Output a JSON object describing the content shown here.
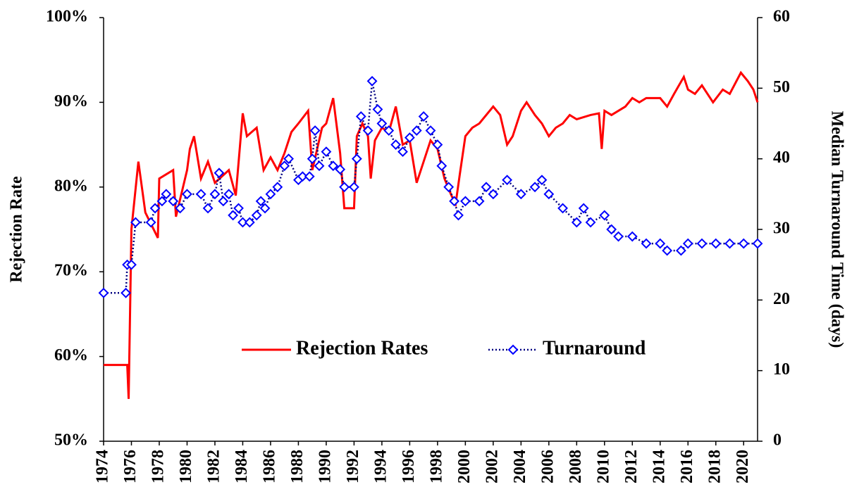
{
  "chart_data": {
    "type": "line",
    "ylabel": "Rejection Rate",
    "y2label": "Median Turnaround Time (days)",
    "xlim": [
      1974,
      2021
    ],
    "xticks": [
      1974,
      1976,
      1978,
      1980,
      1982,
      1984,
      1986,
      1988,
      1990,
      1992,
      1994,
      1996,
      1998,
      2000,
      2002,
      2004,
      2006,
      2008,
      2010,
      2012,
      2014,
      2016,
      2018,
      2020
    ],
    "ylim": [
      50,
      100
    ],
    "yticks": [
      {
        "value": 50,
        "label": "50%"
      },
      {
        "value": 60,
        "label": "60%"
      },
      {
        "value": 70,
        "label": "70%"
      },
      {
        "value": 80,
        "label": "80%"
      },
      {
        "value": 90,
        "label": "90%"
      },
      {
        "value": 100,
        "label": "100%"
      }
    ],
    "y2lim": [
      0,
      60
    ],
    "y2ticks": [
      0,
      10,
      20,
      30,
      40,
      50,
      60
    ],
    "legend": "center",
    "series": [
      {
        "name": "Rejection Rates",
        "color": "#ff0000",
        "style": "solid",
        "x": [
          1974,
          1975.7,
          1975.8,
          1976,
          1976.5,
          1977,
          1977.9,
          1978,
          1979,
          1979.2,
          1980,
          1980.2,
          1980.5,
          1981,
          1981.5,
          1982,
          1983,
          1983.5,
          1984,
          1984.3,
          1985,
          1985.5,
          1986,
          1986.5,
          1987,
          1987.5,
          1988,
          1988.7,
          1989,
          1989.7,
          1990,
          1990.5,
          1991,
          1991.3,
          1992,
          1992.2,
          1992.6,
          1993,
          1993.2,
          1993.5,
          1994,
          1994.5,
          1995,
          1995.5,
          1996,
          1996.5,
          1997,
          1997.5,
          1998,
          1998.5,
          1999,
          1999.3,
          1999.6,
          2000,
          2000.5,
          2001,
          2002,
          2002.5,
          2003,
          2003.4,
          2004,
          2004.4,
          2005,
          2005.5,
          2006,
          2006.5,
          2007,
          2007.5,
          2008,
          2009,
          2009.6,
          2009.8,
          2010,
          2010.5,
          2011,
          2011.5,
          2012,
          2012.5,
          2013,
          2014,
          2014.5,
          2015,
          2015.7,
          2016,
          2016.5,
          2017,
          2017.8,
          2018.5,
          2019,
          2019.8,
          2020.3,
          2020.7,
          2021
        ],
        "values": [
          59,
          59,
          55,
          75,
          83,
          77,
          74,
          81,
          82,
          76.5,
          82,
          84.5,
          86,
          81,
          83,
          80.5,
          82,
          79,
          88.7,
          86,
          87,
          82,
          83.5,
          82,
          84,
          86.5,
          87.5,
          89,
          82,
          87,
          87.5,
          90.5,
          84,
          77.5,
          77.5,
          86,
          87.5,
          86,
          81,
          85.5,
          87,
          86.5,
          89.5,
          85,
          85.5,
          80.5,
          83,
          85.5,
          84.5,
          81,
          79,
          78,
          81.5,
          86,
          87,
          87.5,
          89.5,
          88.5,
          85,
          86,
          89,
          90,
          88.5,
          87.5,
          86,
          87,
          87.5,
          88.5,
          88,
          88.5,
          88.7,
          84.5,
          89,
          88.5,
          89,
          89.5,
          90.5,
          90,
          90.5,
          90.5,
          89.5,
          91,
          93,
          91.5,
          91,
          92,
          90,
          91.5,
          91,
          93.5,
          92.5,
          91.5,
          90
        ]
      },
      {
        "name": "Turnaround",
        "color": "#000080",
        "marker_color": "#0000ff",
        "style": "dotted",
        "axis": "y2",
        "x": [
          1974,
          1975.6,
          1975.7,
          1976,
          1976.3,
          1977.4,
          1977.7,
          1978.2,
          1978.5,
          1979,
          1979.5,
          1980,
          1981,
          1981.5,
          1982,
          1982.3,
          1982.6,
          1983,
          1983.3,
          1983.7,
          1984,
          1984.5,
          1985,
          1985.3,
          1985.6,
          1986,
          1986.5,
          1987,
          1987.3,
          1988,
          1988.3,
          1988.8,
          1989,
          1989.2,
          1989.5,
          1990,
          1990.5,
          1991,
          1991.3,
          1992,
          1992.2,
          1992.5,
          1993,
          1993.3,
          1993.7,
          1994,
          1994.5,
          1995,
          1995.5,
          1996,
          1996.5,
          1997,
          1997.5,
          1998,
          1998.3,
          1998.8,
          1999.2,
          1999.5,
          2000,
          2001,
          2001.5,
          2002,
          2003,
          2004,
          2005,
          2005.5,
          2006,
          2007,
          2008,
          2008.5,
          2009,
          2010,
          2010.5,
          2011,
          2012,
          2013,
          2014,
          2014.5,
          2015.5,
          2016,
          2017,
          2018,
          2019,
          2020,
          2021
        ],
        "values": [
          21,
          21,
          25,
          25,
          31,
          31,
          33,
          34,
          35,
          34,
          33,
          35,
          35,
          33,
          35,
          38,
          34,
          35,
          32,
          33,
          31,
          31,
          32,
          34,
          33,
          35,
          36,
          39,
          40,
          37,
          37.5,
          37.5,
          40,
          44,
          39,
          41,
          39,
          38.5,
          36,
          36,
          40,
          46,
          44,
          51,
          47,
          45,
          44,
          42,
          41,
          43,
          44,
          46,
          44,
          42,
          39,
          36,
          34,
          32,
          34,
          34,
          36,
          35,
          37,
          35,
          36,
          37,
          35,
          33,
          31,
          33,
          31,
          32,
          30,
          29,
          29,
          28,
          28,
          27,
          27,
          28,
          28,
          28,
          28,
          28,
          28
        ]
      }
    ]
  }
}
